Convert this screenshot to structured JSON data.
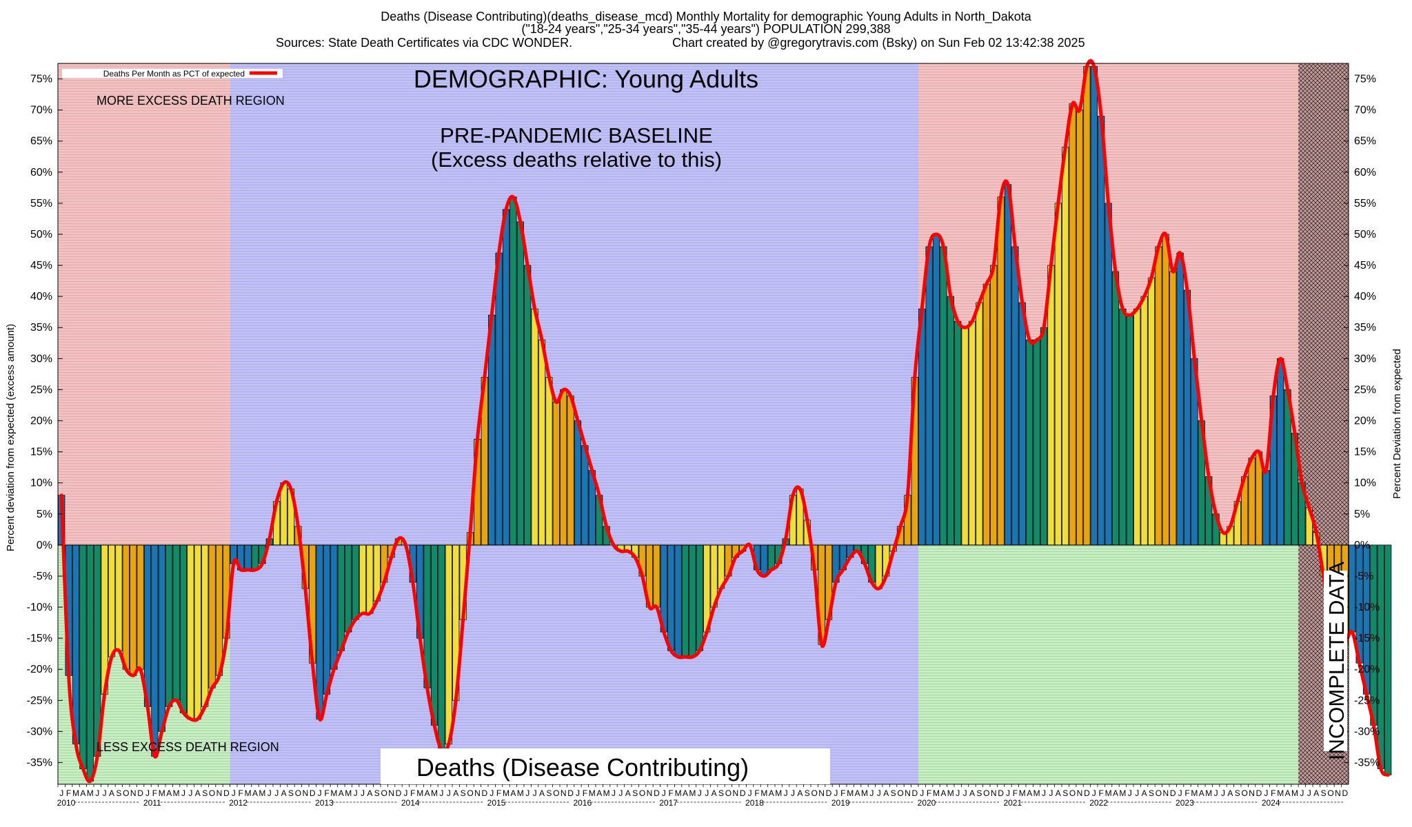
{
  "header": {
    "title_line1": "Deaths (Disease Contributing)(deaths_disease_mcd) Monthly Mortality for demographic Young Adults in North_Dakota",
    "title_line2": "(\"18-24 years\",\"25-34 years\",\"35-44 years\") POPULATION 299,388",
    "title_line3_left": "Sources: State Death Certificates via CDC WONDER.",
    "title_line3_right": "Chart created by @gregorytravis.com (Bsky) on Sun Feb 02 13:42:38 2025"
  },
  "annotations": {
    "demographic": "DEMOGRAPHIC: Young Adults",
    "baseline_line1": "PRE-PANDEMIC BASELINE",
    "baseline_line2": "(Excess deaths relative to this)",
    "more_region": "MORE EXCESS DEATH REGION",
    "less_region": "LESS EXCESS DEATH REGION",
    "metric_box": "Deaths (Disease Contributing)",
    "incomplete": "INCOMPLETE DATA"
  },
  "colors": {
    "excess_region": "#f7c0c0",
    "less_region": "#c4f0c0",
    "baseline_region": "#bfbffb",
    "incomplete_region": "#c79a9a",
    "line": "#ff0000",
    "bar_colors": [
      "#1c75b3",
      "#128a67",
      "#f0df3a",
      "#e8a50e"
    ]
  },
  "chart_data": {
    "type": "bar",
    "ylabel_left": "Percent deviation from expected (excess amount)",
    "ylabel_right": "Percent Deviation from expected",
    "legend": "Deaths Per Month as PCT of expected",
    "legend_position": "top-left",
    "ylim": [
      -38.5,
      77.5
    ],
    "y_ticks": [
      "75%",
      "70%",
      "65%",
      "60%",
      "55%",
      "50%",
      "45%",
      "40%",
      "35%",
      "30%",
      "25%",
      "20%",
      "15%",
      "10%",
      "5%",
      "0%",
      "-5%",
      "-10%",
      "-15%",
      "-20%",
      "-25%",
      "-30%",
      "-35%"
    ],
    "y_tick_values": [
      75,
      70,
      65,
      60,
      55,
      50,
      45,
      40,
      35,
      30,
      25,
      20,
      15,
      10,
      5,
      0,
      -5,
      -10,
      -15,
      -20,
      -25,
      -30,
      -35
    ],
    "month_labels": [
      "J",
      "F",
      "M",
      "A",
      "M",
      "J",
      "J",
      "A",
      "S",
      "O",
      "N",
      "D"
    ],
    "years": [
      "2010",
      "2011",
      "2012",
      "2013",
      "2014",
      "2015",
      "2016",
      "2017",
      "2018",
      "2019",
      "2020",
      "2021",
      "2022",
      "2023",
      "2024"
    ],
    "start_month": "2010-01",
    "baseline_period": [
      "2012-01",
      "2019-12"
    ],
    "incomplete_from": "2024-06",
    "values": [
      8,
      -21,
      -32,
      -36,
      -38,
      -34,
      -24,
      -18,
      -17,
      -20,
      -21,
      -20,
      -26,
      -34,
      -30,
      -26,
      -25,
      -27,
      -28,
      -28,
      -26,
      -23,
      -21,
      -15,
      -3,
      -4,
      -4,
      -4,
      -3,
      1,
      7,
      10,
      9,
      3,
      -7,
      -19,
      -28,
      -24,
      -20,
      -17,
      -14,
      -12,
      -11,
      -11,
      -9,
      -6,
      -2,
      1,
      0,
      -6,
      -15,
      -23,
      -29,
      -33,
      -32,
      -25,
      -12,
      2,
      17,
      27,
      37,
      47,
      54,
      56,
      52,
      45,
      38,
      33,
      27,
      23,
      25,
      24,
      20,
      16,
      12,
      8,
      3,
      0,
      -1,
      -1,
      -2,
      -5,
      -10,
      -10,
      -14,
      -17,
      -18,
      -18,
      -18,
      -17,
      -14,
      -10,
      -7,
      -5,
      -2,
      -1,
      0,
      -4,
      -5,
      -4,
      -3,
      1,
      8,
      9,
      4,
      -4,
      -16,
      -12,
      -6,
      -4,
      -2,
      -1,
      -3,
      -6,
      -7,
      -5,
      -1,
      3,
      8,
      27,
      38,
      48,
      50,
      48,
      40,
      36,
      35,
      36,
      39,
      42,
      45,
      56,
      58,
      48,
      39,
      33,
      33,
      35,
      45,
      55,
      64,
      71,
      70,
      77,
      77,
      69,
      55,
      44,
      38,
      37,
      38,
      40,
      43,
      48,
      50,
      44,
      47,
      41,
      30,
      20,
      11,
      5,
      2,
      3,
      7,
      11,
      14,
      15,
      12,
      24,
      30,
      25,
      18,
      10,
      6,
      2,
      -5,
      -12,
      -18,
      -16,
      -14,
      -19,
      -24,
      -29,
      -36,
      -37
    ]
  }
}
